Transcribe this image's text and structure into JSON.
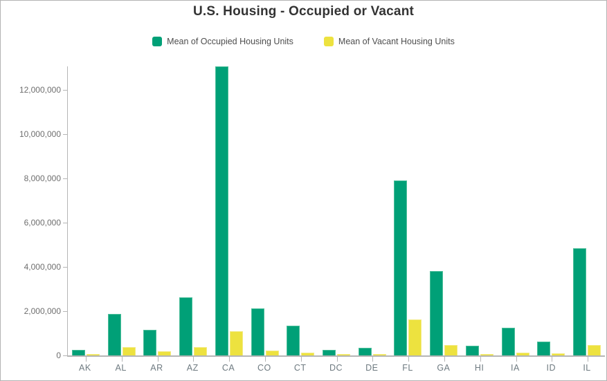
{
  "title": "U.S. Housing - Occupied or Vacant",
  "legend": {
    "items": [
      {
        "label": "Mean of Occupied Housing Units",
        "color": "#00a077"
      },
      {
        "label": "Mean of Vacant Housing Units",
        "color": "#ede23f"
      }
    ]
  },
  "colors": {
    "occupied": "#00a077",
    "vacant": "#ede23f",
    "axis": "#b5b5b5",
    "title_text": "#333333",
    "tick_text": "#6e6e6e",
    "frame_border": "#b3b3b3"
  },
  "chart_data": {
    "type": "bar",
    "title": "U.S. Housing - Occupied or Vacant",
    "categories": [
      "AK",
      "AL",
      "AR",
      "AZ",
      "CA",
      "CO",
      "CT",
      "DC",
      "DE",
      "FL",
      "GA",
      "HI",
      "IA",
      "ID",
      "IL"
    ],
    "series": [
      {
        "name": "Mean of Occupied Housing Units",
        "color": "#00a077",
        "values": [
          250000,
          1880000,
          1160000,
          2630000,
          13060000,
          2130000,
          1340000,
          250000,
          350000,
          7910000,
          3810000,
          440000,
          1250000,
          630000,
          4840000
        ]
      },
      {
        "name": "Mean of Vacant Housing Units",
        "color": "#ede23f",
        "values": [
          60000,
          380000,
          190000,
          380000,
          1090000,
          220000,
          130000,
          50000,
          60000,
          1630000,
          470000,
          70000,
          130000,
          90000,
          470000
        ]
      }
    ],
    "xlabel": "",
    "ylabel": "",
    "ylim": [
      0,
      13125000
    ],
    "yticks": [
      0,
      2000000,
      4000000,
      6000000,
      8000000,
      10000000,
      12000000
    ],
    "ytick_labels": [
      "0",
      "2,000,000",
      "4,000,000",
      "6,000,000",
      "8,000,000",
      "10,000,000",
      "12,000,000"
    ],
    "grid": false,
    "legend_position": "top"
  }
}
